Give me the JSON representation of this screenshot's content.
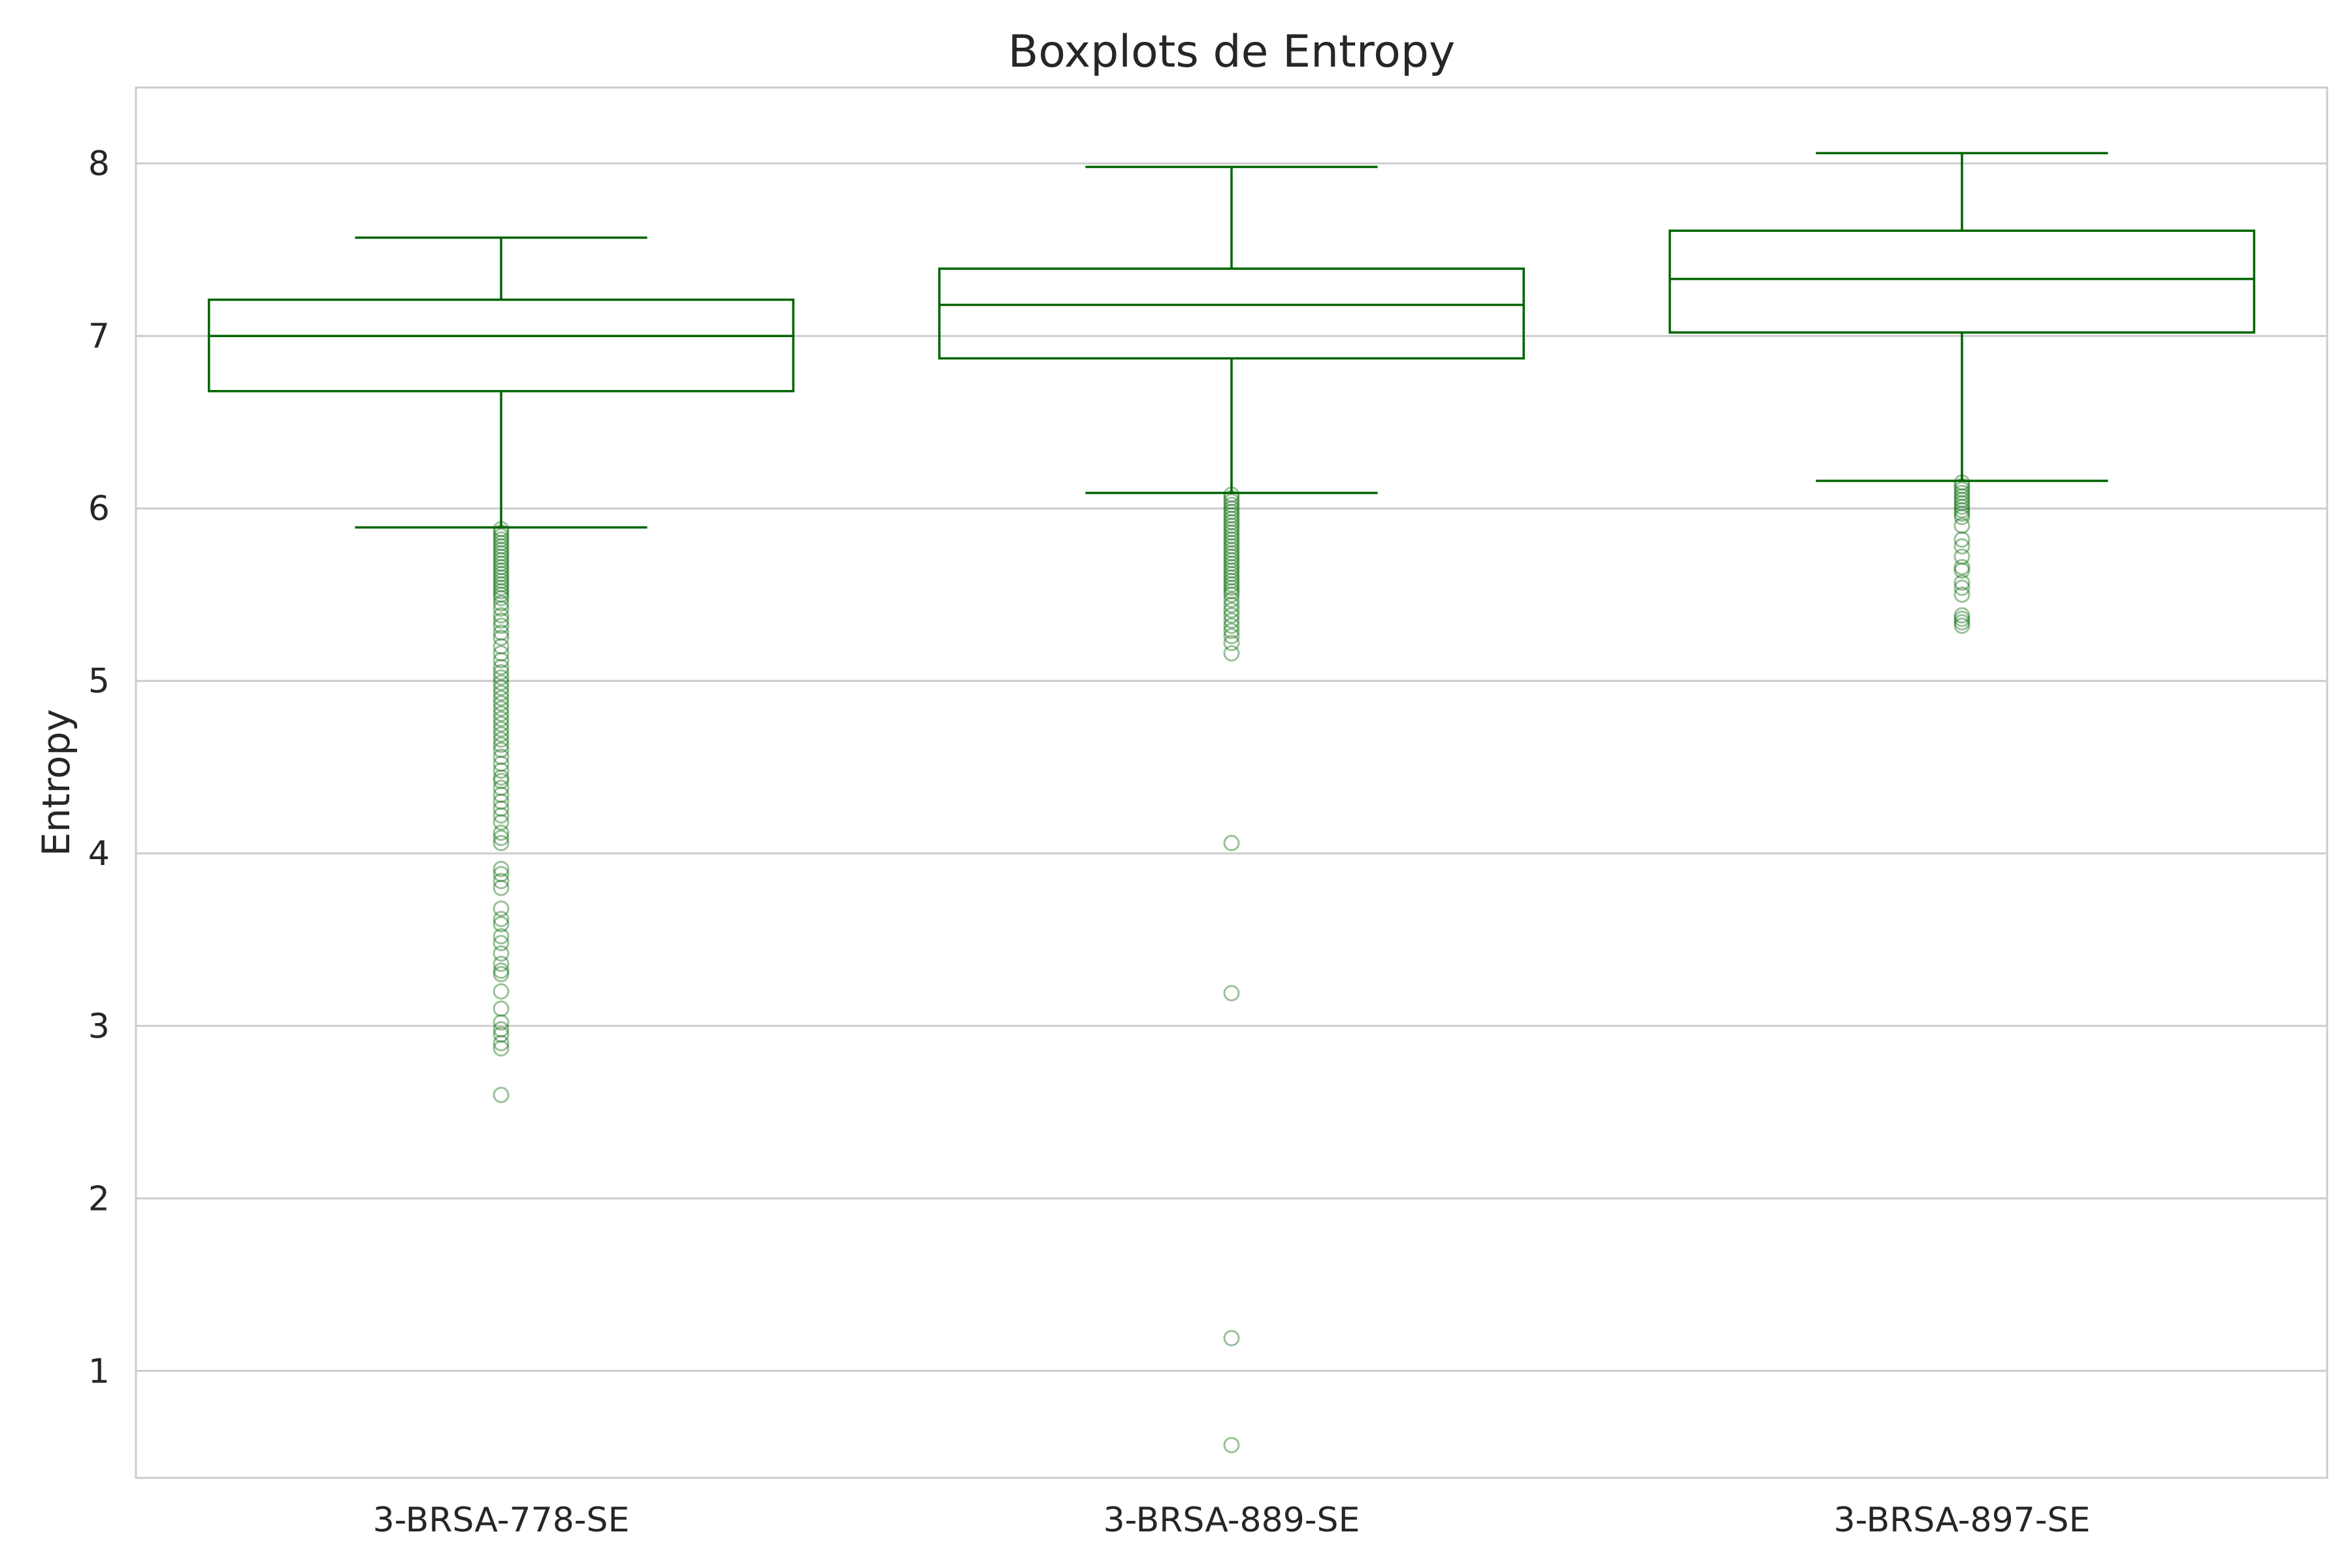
{
  "chart_data": {
    "type": "box",
    "title": "Boxplots de Entropy",
    "xlabel": "",
    "ylabel": "Entropy",
    "ylim": [
      0.38,
      8.44
    ],
    "yticks": [
      1,
      2,
      3,
      4,
      5,
      6,
      7,
      8
    ],
    "grid": "horizontal",
    "colors": {
      "box": "#006400",
      "outlier": "#006400",
      "grid": "#cccccc",
      "frame": "#cccccc"
    },
    "categories": [
      "3-BRSA-778-SE",
      "3-BRSA-889-SE",
      "3-BRSA-897-SE"
    ],
    "boxes": [
      {
        "category": "3-BRSA-778-SE",
        "whisker_low": 5.89,
        "q1": 6.68,
        "median": 7.0,
        "q3": 7.21,
        "whisker_high": 7.57,
        "outliers": [
          5.88,
          5.86,
          5.84,
          5.82,
          5.8,
          5.78,
          5.76,
          5.74,
          5.72,
          5.7,
          5.68,
          5.66,
          5.64,
          5.62,
          5.6,
          5.58,
          5.56,
          5.54,
          5.52,
          5.5,
          5.48,
          5.45,
          5.42,
          5.38,
          5.35,
          5.32,
          5.28,
          5.25,
          5.2,
          5.16,
          5.12,
          5.08,
          5.05,
          5.02,
          4.99,
          4.96,
          4.93,
          4.9,
          4.87,
          4.84,
          4.81,
          4.78,
          4.75,
          4.72,
          4.69,
          4.66,
          4.63,
          4.6,
          4.56,
          4.52,
          4.48,
          4.44,
          4.42,
          4.38,
          4.34,
          4.3,
          4.26,
          4.22,
          4.18,
          4.12,
          4.09,
          4.06,
          3.91,
          3.88,
          3.84,
          3.8,
          3.68,
          3.62,
          3.59,
          3.52,
          3.48,
          3.42,
          3.36,
          3.32,
          3.3,
          3.2,
          3.1,
          3.02,
          2.98,
          2.95,
          2.9,
          2.87,
          2.6
        ]
      },
      {
        "category": "3-BRSA-889-SE",
        "whisker_low": 6.09,
        "q1": 6.87,
        "median": 7.18,
        "q3": 7.39,
        "whisker_high": 7.98,
        "outliers": [
          6.08,
          6.06,
          6.04,
          6.02,
          6.0,
          5.98,
          5.96,
          5.94,
          5.92,
          5.9,
          5.88,
          5.86,
          5.84,
          5.82,
          5.8,
          5.78,
          5.76,
          5.74,
          5.72,
          5.7,
          5.68,
          5.66,
          5.64,
          5.62,
          5.6,
          5.58,
          5.56,
          5.54,
          5.52,
          5.5,
          5.47,
          5.44,
          5.41,
          5.38,
          5.35,
          5.32,
          5.29,
          5.26,
          5.22,
          5.16,
          4.06,
          3.19,
          1.19,
          0.57
        ]
      },
      {
        "category": "3-BRSA-897-SE",
        "whisker_low": 6.16,
        "q1": 7.02,
        "median": 7.33,
        "q3": 7.61,
        "whisker_high": 8.06,
        "outliers": [
          6.15,
          6.13,
          6.11,
          6.09,
          6.07,
          6.05,
          6.03,
          6.01,
          5.99,
          5.97,
          5.95,
          5.9,
          5.82,
          5.78,
          5.72,
          5.66,
          5.64,
          5.57,
          5.54,
          5.5,
          5.38,
          5.36,
          5.34,
          5.32
        ]
      }
    ]
  }
}
